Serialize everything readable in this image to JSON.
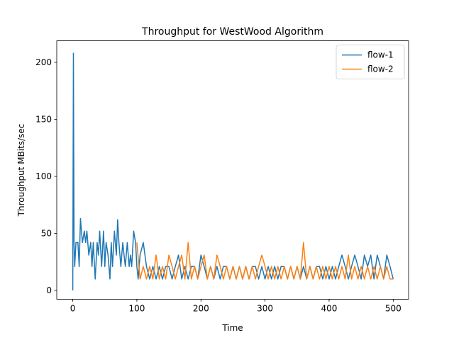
{
  "chart_data": {
    "type": "line",
    "title": "Throughput for WestWood Algorithm",
    "x_label": "Time",
    "y_label": "Throughput MBits/sec",
    "xlim": [
      -25,
      524
    ],
    "ylim": [
      -7.7,
      218.9
    ],
    "xticks": [
      0,
      100,
      200,
      300,
      400,
      500
    ],
    "yticks": [
      0,
      50,
      100,
      150,
      200
    ],
    "grid": false,
    "legend": "upper right",
    "series": [
      {
        "name": "flow-1",
        "color": "#1f77b4",
        "x": [
          0,
          1,
          2,
          3,
          5,
          8,
          10,
          12,
          15,
          18,
          20,
          22,
          25,
          28,
          30,
          32,
          35,
          38,
          40,
          42,
          45,
          48,
          50,
          52,
          55,
          58,
          60,
          62,
          65,
          68,
          70,
          72,
          75,
          78,
          80,
          82,
          85,
          88,
          90,
          92,
          95,
          98,
          100,
          102,
          105,
          110,
          115,
          120,
          125,
          130,
          135,
          140,
          145,
          150,
          155,
          160,
          165,
          170,
          175,
          180,
          185,
          190,
          195,
          200,
          205,
          210,
          215,
          220,
          225,
          230,
          235,
          240,
          245,
          250,
          255,
          260,
          265,
          270,
          275,
          280,
          285,
          290,
          295,
          300,
          305,
          310,
          315,
          320,
          325,
          330,
          335,
          340,
          345,
          350,
          355,
          360,
          365,
          370,
          375,
          380,
          385,
          390,
          395,
          400,
          405,
          410,
          415,
          420,
          425,
          430,
          435,
          440,
          445,
          450,
          455,
          460,
          465,
          470,
          475,
          480,
          485,
          490,
          495,
          500
        ],
        "values": [
          0,
          208,
          42,
          21,
          42,
          42,
          21,
          63,
          42,
          52,
          42,
          52,
          31,
          42,
          21,
          42,
          10,
          42,
          31,
          52,
          21,
          52,
          21,
          42,
          31,
          10,
          42,
          21,
          52,
          31,
          62,
          42,
          21,
          42,
          31,
          21,
          42,
          21,
          31,
          21,
          52,
          42,
          21,
          10,
          31,
          42,
          21,
          10,
          21,
          10,
          21,
          10,
          21,
          21,
          10,
          21,
          31,
          10,
          21,
          10,
          21,
          21,
          10,
          31,
          21,
          10,
          21,
          10,
          21,
          10,
          21,
          21,
          10,
          21,
          10,
          21,
          10,
          21,
          10,
          21,
          21,
          10,
          21,
          10,
          21,
          10,
          21,
          10,
          21,
          21,
          10,
          21,
          10,
          21,
          10,
          21,
          10,
          21,
          10,
          21,
          21,
          10,
          21,
          10,
          21,
          10,
          21,
          31,
          21,
          10,
          21,
          31,
          21,
          10,
          31,
          21,
          31,
          10,
          31,
          21,
          10,
          31,
          21,
          10
        ]
      },
      {
        "name": "flow-2",
        "color": "#ff7f0e",
        "x": [
          100,
          105,
          110,
          115,
          120,
          125,
          130,
          135,
          140,
          145,
          150,
          155,
          160,
          165,
          170,
          175,
          180,
          185,
          190,
          195,
          200,
          205,
          210,
          215,
          220,
          225,
          230,
          235,
          240,
          245,
          250,
          255,
          260,
          265,
          270,
          275,
          280,
          285,
          290,
          295,
          300,
          305,
          310,
          315,
          320,
          325,
          330,
          335,
          340,
          345,
          350,
          355,
          360,
          365,
          370,
          375,
          380,
          385,
          390,
          395,
          400,
          405,
          410,
          415,
          420,
          425,
          430,
          435,
          440,
          445,
          450,
          455,
          460,
          465,
          470,
          475,
          480,
          485,
          490,
          495,
          500
        ],
        "values": [
          42,
          10,
          21,
          10,
          21,
          10,
          31,
          10,
          21,
          10,
          31,
          21,
          10,
          21,
          31,
          10,
          42,
          10,
          21,
          10,
          21,
          31,
          10,
          21,
          10,
          31,
          21,
          10,
          21,
          10,
          21,
          10,
          21,
          10,
          21,
          10,
          21,
          10,
          21,
          31,
          21,
          10,
          21,
          10,
          21,
          10,
          21,
          10,
          21,
          10,
          21,
          10,
          42,
          10,
          21,
          10,
          21,
          10,
          21,
          10,
          21,
          10,
          21,
          10,
          21,
          10,
          31,
          10,
          21,
          10,
          21,
          10,
          21,
          10,
          21,
          10,
          21,
          10,
          21,
          10,
          10
        ]
      }
    ]
  }
}
